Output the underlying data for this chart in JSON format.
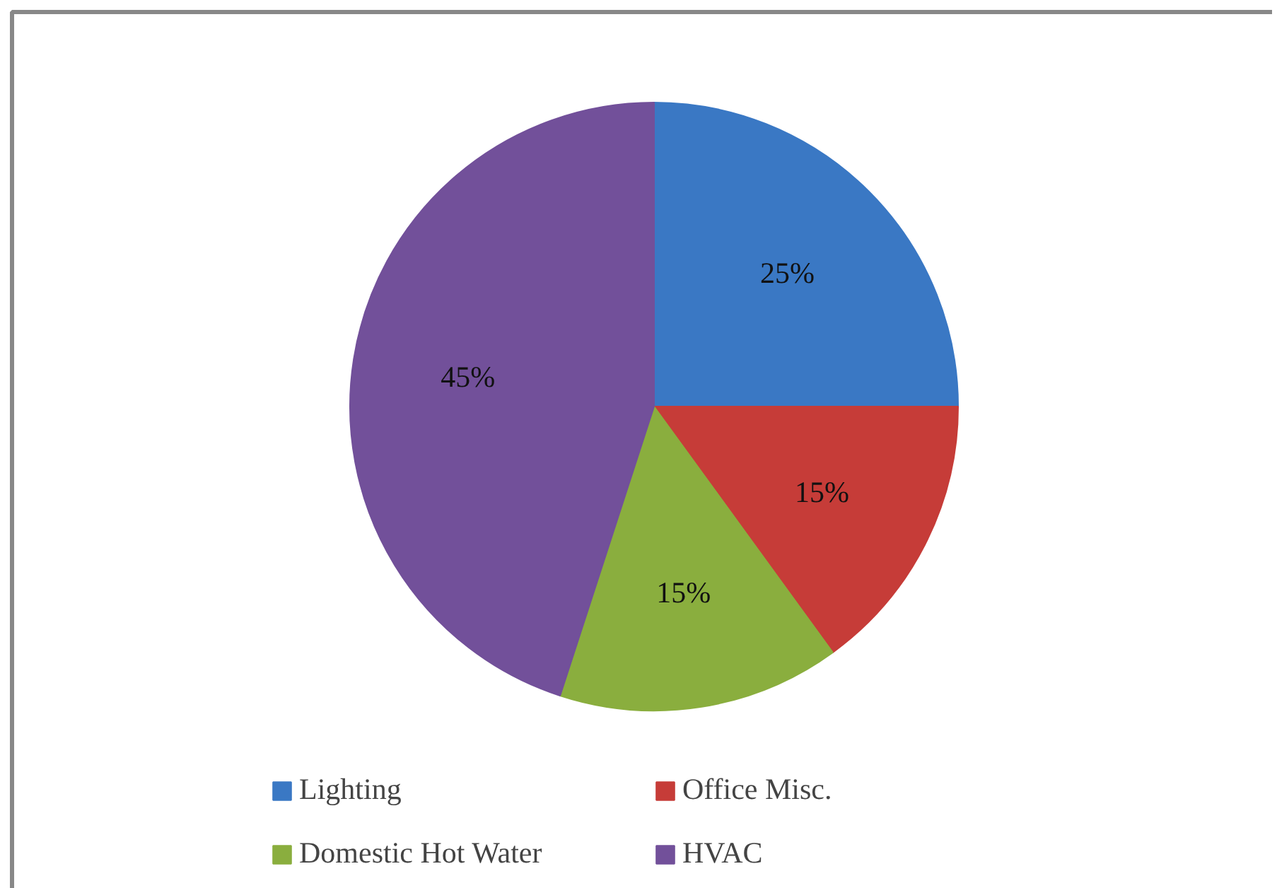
{
  "chart_data": {
    "type": "pie",
    "categories": [
      "Lighting",
      "Office Misc.",
      "Domestic Hot Water",
      "HVAC"
    ],
    "values": [
      25,
      15,
      15,
      45
    ],
    "colors": [
      "#3a78c4",
      "#c63c38",
      "#8aae3e",
      "#72509a"
    ],
    "value_labels": [
      "25%",
      "15%",
      "15%",
      "45%"
    ],
    "legend": "bottom"
  }
}
